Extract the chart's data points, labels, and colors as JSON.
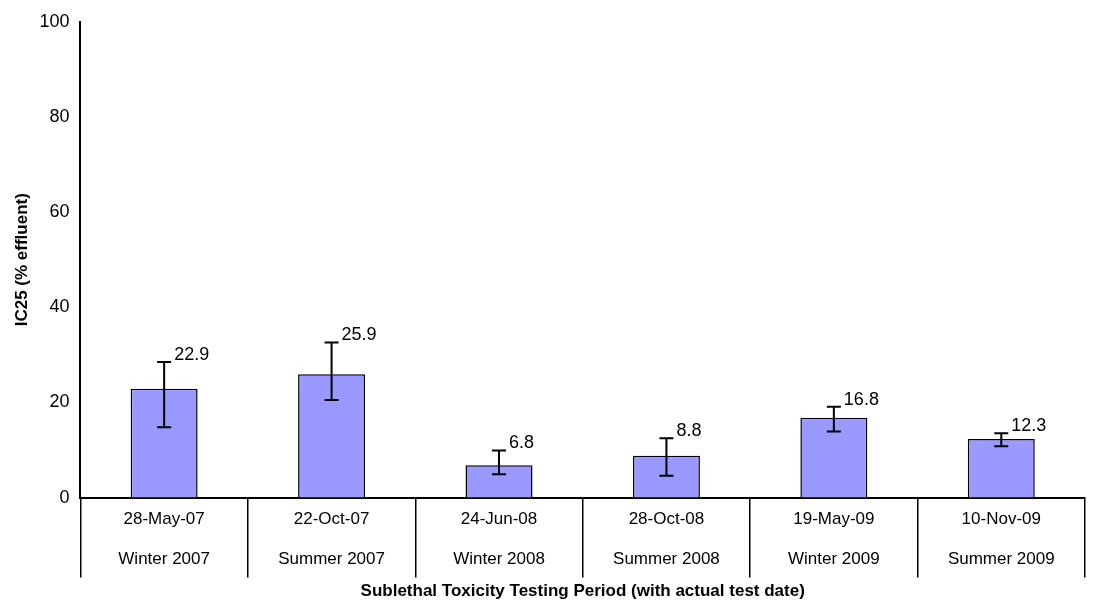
{
  "chart_data": {
    "type": "bar",
    "xlabel": "Sublethal Toxicity Testing Period (with actual test date)",
    "ylabel": "IC25 (% effluent)",
    "categories": [
      "28-May-07\nWinter 2007",
      "22-Oct-07\nSummer 2007",
      "24-Jun-08\nWinter 2008",
      "28-Oct-08\nSummer 2008",
      "19-May-09\nWinter 2009",
      "10-Nov-09\nSummer 2009"
    ],
    "values": [
      22.9,
      25.9,
      6.8,
      8.8,
      16.8,
      12.3
    ],
    "errors": [
      [
        14.8,
        28.5
      ],
      [
        20.5,
        32.6
      ],
      [
        4.9,
        9.9
      ],
      [
        4.6,
        12.5
      ],
      [
        13.9,
        19.1
      ],
      [
        10.8,
        13.5
      ]
    ],
    "color": "#9999ff",
    "ylim": [
      0,
      100
    ],
    "yticks": [
      0,
      20,
      40,
      60,
      80,
      100
    ],
    "data_labels": true,
    "legend": false,
    "grid": false
  }
}
